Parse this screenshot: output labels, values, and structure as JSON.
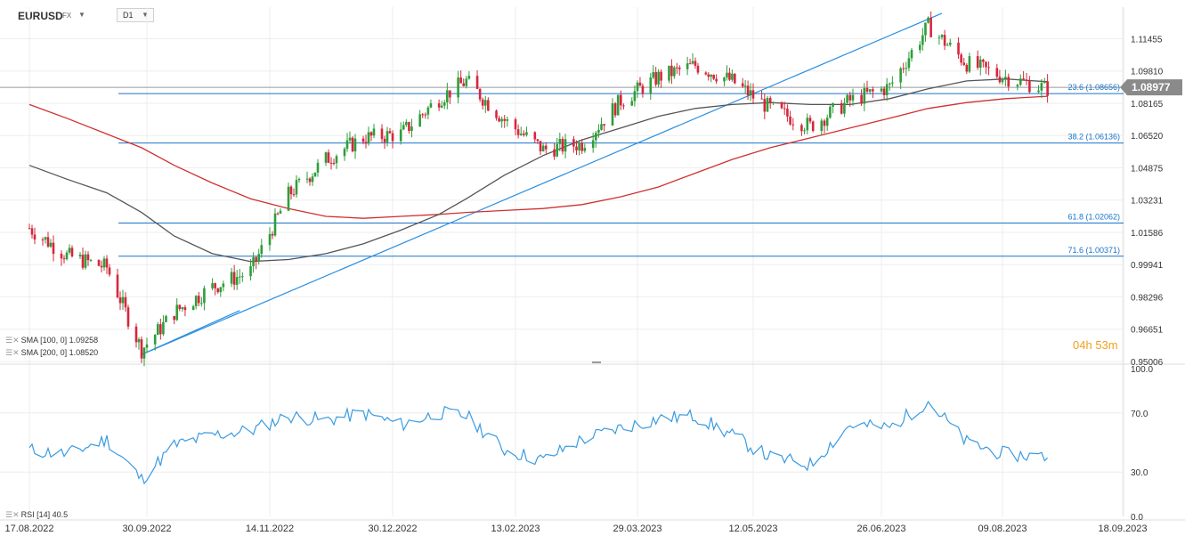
{
  "header": {
    "symbol": "EURUSD",
    "market": "FX",
    "timeframe": "D1"
  },
  "price_axis": {
    "labels": [
      "1.11455",
      "1.09810",
      "1.08165",
      "1.06520",
      "1.04875",
      "1.03231",
      "1.01586",
      "0.99941",
      "0.98296",
      "0.96651",
      "0.95006"
    ],
    "current_price": "1.08977"
  },
  "rsi_axis": {
    "labels": [
      "100.0",
      "70.0",
      "30.0",
      "0.0"
    ]
  },
  "time_axis": {
    "labels": [
      "17.08.2022",
      "30.09.2022",
      "14.11.2022",
      "30.12.2022",
      "13.02.2023",
      "29.03.2023",
      "12.05.2023",
      "26.06.2023",
      "09.08.2023",
      "18.09.2023"
    ]
  },
  "indicators": {
    "sma100": {
      "name": "SMA [100, 0]",
      "value": "1.09258"
    },
    "sma200": {
      "name": "SMA [200, 0]",
      "value": "1.08520"
    },
    "rsi": {
      "name": "RSI [14]",
      "value": "40.5"
    }
  },
  "fibonacci": [
    {
      "label": "23.6 (1.08656)",
      "value": 1.08656
    },
    {
      "label": "38.2 (1.06136)",
      "value": 1.06136
    },
    {
      "label": "61.8 (1.02062)",
      "value": 1.02062
    },
    {
      "label": "71.6 (1.00371)",
      "value": 1.00371
    }
  ],
  "timer": {
    "hours": "04",
    "hours_unit": "h",
    "minutes": "53",
    "minutes_unit": "m"
  },
  "colors": {
    "up": "#2e9e3a",
    "down": "#d7263d",
    "sma100": "#555555",
    "sma200": "#d03030",
    "fib": "#1a73c8",
    "trend": "#2a8fe0",
    "rsi": "#3a9be0",
    "price_badge": "#8a8a8a"
  },
  "chart_data": [
    {
      "type": "line",
      "title": "",
      "x": [
        "2022-08-17",
        "2022-08-31",
        "2022-09-15",
        "2022-09-28",
        "2022-10-10",
        "2022-10-24",
        "2022-11-07",
        "2022-11-21",
        "2022-12-05",
        "2022-12-19",
        "2023-01-02",
        "2023-01-16",
        "2023-01-26",
        "2023-02-09",
        "2023-02-23",
        "2023-03-09",
        "2023-03-23",
        "2023-04-06",
        "2023-04-20",
        "2023-05-04",
        "2023-05-18",
        "2023-06-01",
        "2023-06-15",
        "2023-06-29",
        "2023-07-13",
        "2023-07-27",
        "2023-08-10",
        "2023-08-24"
      ],
      "series": [
        {
          "name": "EURUSD",
          "values": [
            1.018,
            1.004,
            0.998,
            0.956,
            0.975,
            0.988,
            0.996,
            1.035,
            1.053,
            1.064,
            1.066,
            1.084,
            1.093,
            1.073,
            1.058,
            1.061,
            1.083,
            1.095,
            1.101,
            1.093,
            1.079,
            1.07,
            1.083,
            1.09,
            1.121,
            1.102,
            1.095,
            1.089
          ]
        },
        {
          "name": "SMA [100, 0]",
          "values": [
            1.05,
            1.043,
            1.036,
            1.026,
            1.014,
            1.005,
            1.001,
            1.002,
            1.005,
            1.01,
            1.017,
            1.025,
            1.033,
            1.045,
            1.055,
            1.063,
            1.069,
            1.075,
            1.079,
            1.081,
            1.082,
            1.081,
            1.081,
            1.084,
            1.089,
            1.093,
            1.094,
            1.0926
          ]
        },
        {
          "name": "SMA [200, 0]",
          "values": [
            1.081,
            1.074,
            1.066,
            1.059,
            1.05,
            1.041,
            1.033,
            1.028,
            1.024,
            1.023,
            1.024,
            1.025,
            1.026,
            1.027,
            1.028,
            1.03,
            1.034,
            1.039,
            1.046,
            1.053,
            1.059,
            1.064,
            1.069,
            1.074,
            1.079,
            1.082,
            1.084,
            1.0852
          ]
        }
      ],
      "xlabel": "",
      "ylabel": "",
      "ylim": [
        0.95006,
        1.12
      ]
    },
    {
      "type": "line",
      "title": "",
      "x": [
        "2022-08-17",
        "2022-08-31",
        "2022-09-15",
        "2022-09-28",
        "2022-10-10",
        "2022-10-24",
        "2022-11-07",
        "2022-11-21",
        "2022-12-05",
        "2022-12-19",
        "2023-01-02",
        "2023-01-16",
        "2023-01-26",
        "2023-02-09",
        "2023-02-23",
        "2023-03-09",
        "2023-03-23",
        "2023-04-06",
        "2023-04-20",
        "2023-05-04",
        "2023-05-18",
        "2023-06-01",
        "2023-06-15",
        "2023-06-29",
        "2023-07-13",
        "2023-07-27",
        "2023-08-10",
        "2023-08-24"
      ],
      "series": [
        {
          "name": "RSI [14]",
          "values": [
            45,
            42,
            52,
            25,
            48,
            55,
            58,
            68,
            65,
            70,
            62,
            70,
            68,
            45,
            38,
            52,
            60,
            66,
            68,
            55,
            40,
            35,
            62,
            60,
            78,
            50,
            42,
            40.5
          ]
        }
      ],
      "xlabel": "",
      "ylabel": "",
      "ylim": [
        0,
        100
      ]
    }
  ]
}
